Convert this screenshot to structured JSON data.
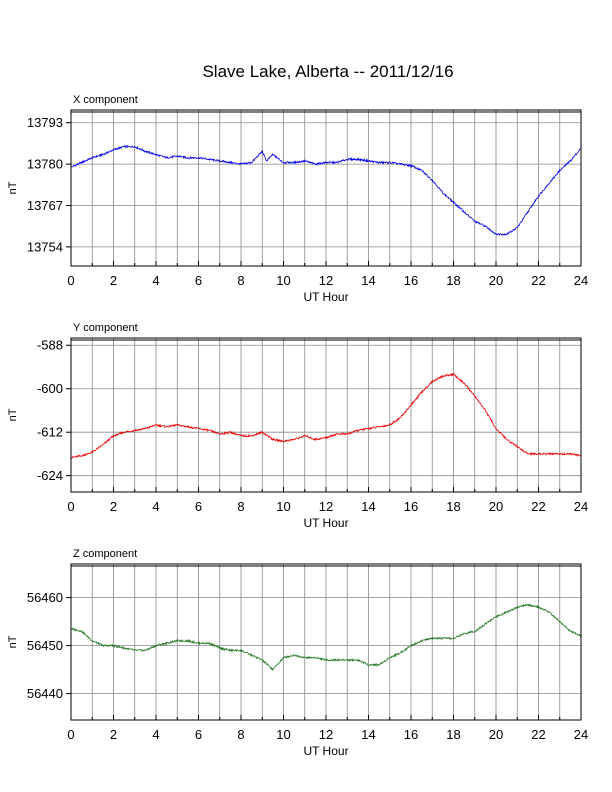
{
  "figure_title": "Slave Lake, Alberta -- 2011/12/16",
  "chart_data": [
    {
      "type": "line",
      "title": "X component",
      "xlabel": "UT Hour",
      "ylabel": "nT",
      "xlim": [
        0,
        24
      ],
      "ylim": [
        13748,
        13797
      ],
      "xticks": [
        0,
        2,
        4,
        6,
        8,
        10,
        12,
        14,
        16,
        18,
        20,
        22,
        24
      ],
      "yticks": [
        13754,
        13767,
        13780,
        13793
      ],
      "grid": true,
      "color": "#0000ee",
      "series": [
        {
          "x": [
            0,
            0.5,
            1,
            1.5,
            2,
            2.5,
            3,
            3.5,
            4,
            4.5,
            5,
            5.5,
            6,
            6.5,
            7,
            7.5,
            8,
            8.5,
            9,
            9.2,
            9.5,
            10,
            10.5,
            11,
            11.5,
            12,
            12.5,
            13,
            13.5,
            14,
            14.5,
            15,
            15.5,
            16,
            16.5,
            17,
            17.5,
            18,
            18.5,
            19,
            19.5,
            20,
            20.5,
            21,
            21.5,
            22,
            22.5,
            23,
            23.5,
            24
          ],
          "y": [
            13779,
            13780.5,
            13782,
            13783,
            13784.5,
            13785.5,
            13785.5,
            13784,
            13783,
            13782,
            13782.5,
            13782,
            13782,
            13781.5,
            13781,
            13780.5,
            13780,
            13780.5,
            13784,
            13781,
            13783,
            13780.5,
            13780.5,
            13781,
            13780,
            13780.5,
            13780.5,
            13781.5,
            13781.5,
            13781,
            13780.5,
            13780.5,
            13780,
            13779.5,
            13778,
            13775,
            13771,
            13768,
            13765,
            13762,
            13760.5,
            13758,
            13758,
            13760,
            13765,
            13770,
            13774,
            13778,
            13781,
            13785
          ]
        }
      ]
    },
    {
      "type": "line",
      "title": "Y component",
      "xlabel": "UT Hour",
      "ylabel": "nT",
      "xlim": [
        0,
        24
      ],
      "ylim": [
        -628.5,
        -586
      ],
      "xticks": [
        0,
        2,
        4,
        6,
        8,
        10,
        12,
        14,
        16,
        18,
        20,
        22,
        24
      ],
      "yticks": [
        -588,
        -600,
        -612,
        -624
      ],
      "grid": true,
      "color": "#ee0000",
      "series": [
        {
          "x": [
            0,
            0.5,
            1,
            1.5,
            2,
            2.5,
            3,
            3.5,
            4,
            4.5,
            5,
            5.5,
            6,
            6.5,
            7,
            7.5,
            8,
            8.5,
            9,
            9.5,
            10,
            10.5,
            11,
            11.5,
            12,
            12.5,
            13,
            13.5,
            14,
            14.5,
            15,
            15.5,
            16,
            16.5,
            17,
            17.5,
            18,
            18.5,
            19,
            19.5,
            20,
            20.5,
            21,
            21.5,
            22,
            22.5,
            23,
            23.5,
            24
          ],
          "y": [
            -619,
            -618.5,
            -617.5,
            -615.5,
            -613,
            -612,
            -611.5,
            -611,
            -610,
            -610.5,
            -610,
            -610.5,
            -611,
            -611.5,
            -612.5,
            -612,
            -613,
            -613,
            -612,
            -614,
            -614.5,
            -614,
            -613,
            -614,
            -613.5,
            -612.5,
            -612.5,
            -611.5,
            -611,
            -610.5,
            -610,
            -608,
            -604.5,
            -601,
            -598,
            -596.5,
            -596,
            -598.5,
            -602,
            -606,
            -611,
            -614,
            -616,
            -618,
            -618,
            -618,
            -618,
            -618,
            -618.5
          ]
        }
      ]
    },
    {
      "type": "line",
      "title": "Z component",
      "xlabel": "UT Hour",
      "ylabel": "nT",
      "xlim": [
        0,
        24
      ],
      "ylim": [
        56434.5,
        56467
      ],
      "xticks": [
        0,
        2,
        4,
        6,
        8,
        10,
        12,
        14,
        16,
        18,
        20,
        22,
        24
      ],
      "yticks": [
        56440,
        56450,
        56460
      ],
      "grid": true,
      "color": "#227722",
      "series": [
        {
          "x": [
            0,
            0.5,
            1,
            1.5,
            2,
            2.5,
            3,
            3.5,
            4,
            4.5,
            5,
            5.5,
            6,
            6.5,
            7,
            7.5,
            8,
            8.5,
            9,
            9.5,
            10,
            10.5,
            11,
            11.5,
            12,
            12.5,
            13,
            13.5,
            14,
            14.5,
            15,
            15.5,
            16,
            16.5,
            17,
            17.5,
            18,
            18.5,
            19,
            19.5,
            20,
            20.5,
            21,
            21.5,
            22,
            22.5,
            23,
            23.5,
            24
          ],
          "y": [
            56453.5,
            56453,
            56451,
            56450,
            56450,
            56449.5,
            56449,
            56449,
            56450,
            56450.5,
            56451,
            56451,
            56450.5,
            56450.5,
            56449.5,
            56449,
            56449,
            56448,
            56447,
            56445,
            56447.5,
            56448,
            56447.5,
            56447.5,
            56447,
            56447,
            56447,
            56447,
            56446,
            56446,
            56447.5,
            56448.5,
            56450,
            56451,
            56451.5,
            56451.5,
            56451.5,
            56452.5,
            56453,
            56454.5,
            56456,
            56457,
            56458,
            56458.5,
            56458,
            56457,
            56455,
            56453,
            56452
          ]
        }
      ]
    }
  ]
}
